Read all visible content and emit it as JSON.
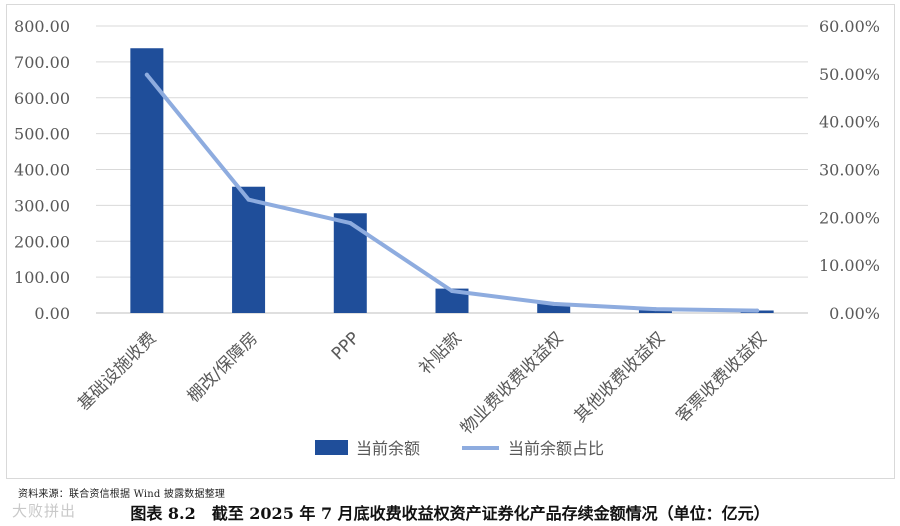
{
  "chart_data": {
    "type": "bar",
    "categories": [
      "基础设施收费",
      "棚改/保障房",
      "PPP",
      "补贴款",
      "物业费收费收益权",
      "其他收费收益权",
      "客票收费收益权"
    ],
    "series": [
      {
        "name": "当前余额",
        "type": "bar",
        "axis": "left",
        "color": "#1f4e9a",
        "values": [
          738,
          352,
          278,
          68,
          28,
          12,
          7
        ]
      },
      {
        "name": "当前余额占比",
        "type": "line",
        "axis": "right",
        "color": "#8eacdf",
        "values": [
          49.8,
          23.7,
          18.8,
          4.6,
          1.9,
          0.8,
          0.5
        ]
      }
    ],
    "ylim_left": [
      0,
      800
    ],
    "ylim_right": [
      0,
      60
    ],
    "yticks_left": [
      "800.00",
      "700.00",
      "600.00",
      "500.00",
      "400.00",
      "300.00",
      "200.00",
      "100.00",
      "0.00"
    ],
    "yticks_right": [
      "60.00%",
      "50.00%",
      "40.00%",
      "30.00%",
      "20.00%",
      "10.00%",
      "0.00%"
    ],
    "grid": true,
    "legend_position": "bottom"
  },
  "source_note": "资料来源：联合资信根据 Wind 披露数据整理",
  "caption": "图表 8.2　截至 2025 年 7 月底收费收益权资产证券化产品存续金额情况（单位：亿元）",
  "watermark": "大败拼出"
}
